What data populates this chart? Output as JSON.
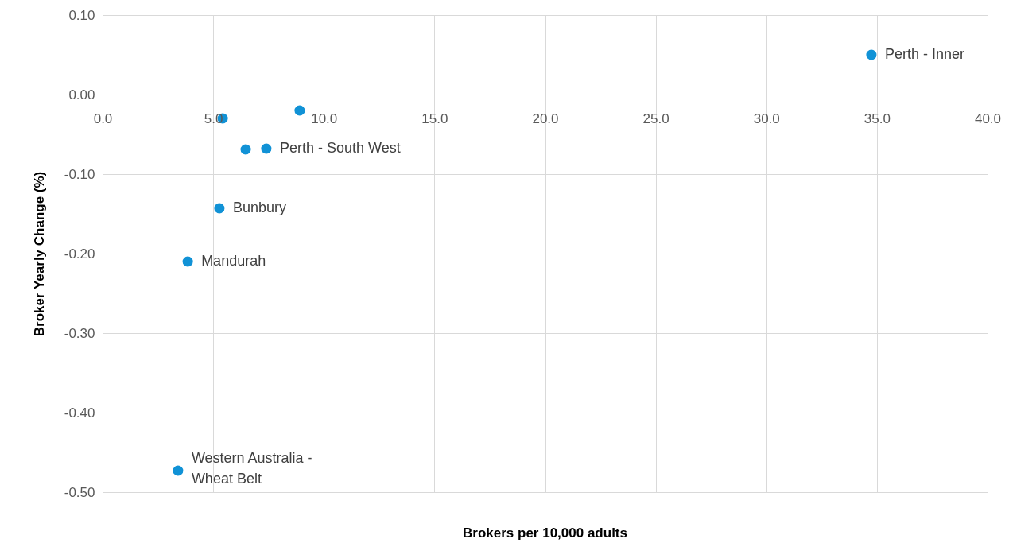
{
  "chart_data": {
    "type": "scatter",
    "xlabel": "Brokers per 10,000 adults",
    "ylabel": "Broker Yearly Change (%)",
    "x": [
      34.75,
      8.91,
      5.43,
      6.47,
      7.4,
      5.28,
      3.85,
      3.41
    ],
    "series": [
      {
        "color": "#1192d6",
        "values": [
          0.05,
          -0.02,
          -0.03,
          -0.069,
          -0.068,
          -0.143,
          -0.21,
          -0.473
        ]
      }
    ],
    "annotations": [
      {
        "text": "Perth - Inner",
        "x": 34.75,
        "y": 0.05
      },
      {
        "text": "Perth - South West",
        "x": 7.4,
        "y": -0.068
      },
      {
        "text": "Bunbury",
        "x": 5.28,
        "y": -0.143
      },
      {
        "text": "Mandurah",
        "x": 3.85,
        "y": -0.21
      },
      {
        "text": "Western Australia - Wheat Belt",
        "x": 3.41,
        "y": -0.473
      }
    ],
    "xlim": [
      0,
      40
    ],
    "ylim": [
      -0.5,
      0.1
    ],
    "xticks": [
      {
        "value": 0,
        "label": "0.0"
      },
      {
        "value": 5,
        "label": "5.0"
      },
      {
        "value": 10,
        "label": "10.0"
      },
      {
        "value": 15,
        "label": "15.0"
      },
      {
        "value": 20,
        "label": "20.0"
      },
      {
        "value": 25,
        "label": "25.0"
      },
      {
        "value": 30,
        "label": "30.0"
      },
      {
        "value": 35,
        "label": "35.0"
      },
      {
        "value": 40,
        "label": "40.0"
      }
    ],
    "yticks": [
      {
        "value": 0.1,
        "label": "0.10"
      },
      {
        "value": 0,
        "label": "0.00"
      },
      {
        "value": -0.1,
        "label": "-0.10"
      },
      {
        "value": -0.2,
        "label": "-0.20"
      },
      {
        "value": -0.3,
        "label": "-0.30"
      },
      {
        "value": -0.4,
        "label": "-0.40"
      },
      {
        "value": -0.5,
        "label": "-0.50"
      }
    ],
    "grid": true,
    "marker": "circle"
  }
}
